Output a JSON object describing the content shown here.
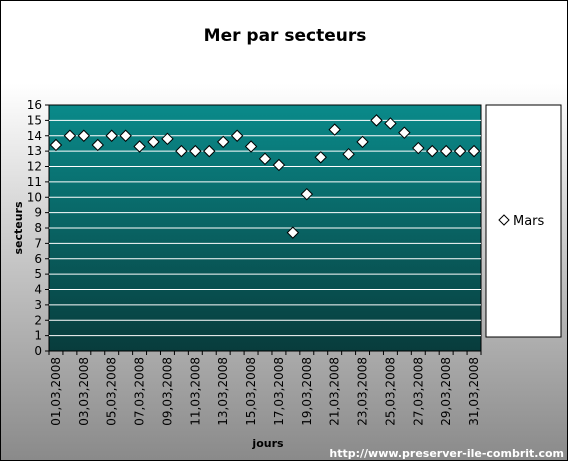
{
  "chart_data": {
    "type": "scatter",
    "title": "Mer par secteurs",
    "xlabel": "jours",
    "ylabel": "secteurs",
    "ylim": [
      0,
      16
    ],
    "yticks": [
      0,
      1,
      2,
      3,
      4,
      5,
      6,
      7,
      8,
      9,
      10,
      11,
      12,
      13,
      14,
      15,
      16
    ],
    "grid": true,
    "legend_position": "right",
    "x": [
      "01,03,2008",
      "02,03,2008",
      "03,03,2008",
      "04,03,2008",
      "05,03,2008",
      "06,03,2008",
      "07,03,2008",
      "08,03,2008",
      "09,03,2008",
      "10,03,2008",
      "11,03,2008",
      "12,03,2008",
      "13,03,2008",
      "14,03,2008",
      "15,03,2008",
      "16,03,2008",
      "17,03,2008",
      "18,03,2008",
      "19,03,2008",
      "20,03,2008",
      "21,03,2008",
      "22,03,2008",
      "23,03,2008",
      "24,03,2008",
      "25,03,2008",
      "26,03,2008",
      "27,03,2008",
      "28,03,2008",
      "29,03,2008",
      "30,03,2008",
      "31,03,2008"
    ],
    "x_tick_labels": [
      "01,03,2008",
      "03,03,2008",
      "05,03,2008",
      "07,03,2008",
      "09,03,2008",
      "11,03,2008",
      "13,03,2008",
      "15,03,2008",
      "17,03,2008",
      "19,03,2008",
      "21,03,2008",
      "23,03,2008",
      "25,03,2008",
      "27,03,2008",
      "29,03,2008",
      "31,03,2008"
    ],
    "series": [
      {
        "name": "Mars",
        "values": [
          13.4,
          14.0,
          14.0,
          13.4,
          14.0,
          14.0,
          13.3,
          13.6,
          13.8,
          13.0,
          13.0,
          13.0,
          13.6,
          14.0,
          13.3,
          12.5,
          12.1,
          7.7,
          10.2,
          12.6,
          14.4,
          12.8,
          13.6,
          15.0,
          14.8,
          14.2,
          13.2,
          13.0,
          13.0,
          13.0,
          13.0
        ]
      }
    ],
    "colors": {
      "plot_top": "#0a8a8a",
      "plot_bottom": "#083c3c",
      "marker_fill": "#ffffff",
      "marker_stroke": "#000000"
    }
  },
  "footer": {
    "credit": "http://www.preserver-ile-combrit.com"
  }
}
